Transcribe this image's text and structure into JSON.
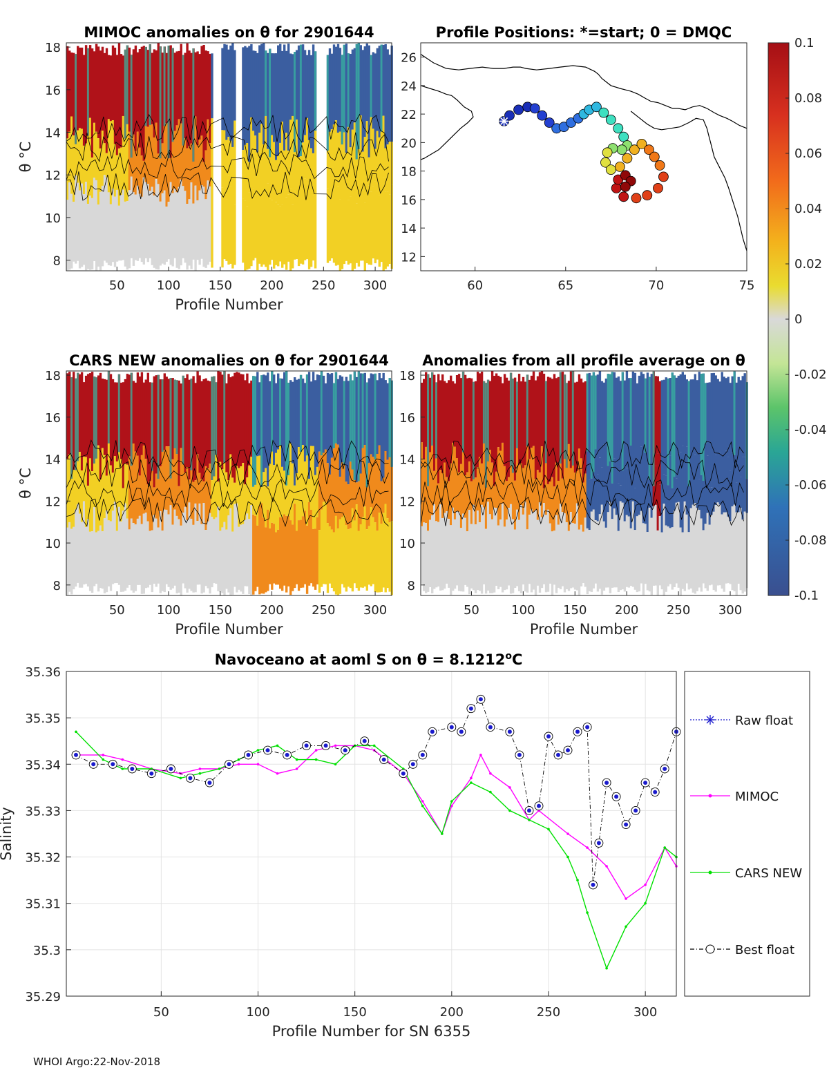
{
  "footer": "WHOI Argo:22-Nov-2018",
  "colors": {
    "warm": "#b01219",
    "orange": "#f08a1c",
    "yellow": "#f2d024",
    "neutral": "#d8d8d8",
    "teal": "#38b4a0",
    "blue": "#3b5ea0",
    "magenta": "#ff00ff",
    "green": "#00e000",
    "navy": "#1a1acc"
  },
  "chart_data": [
    {
      "id": "mimoc",
      "type": "heatmap",
      "title": "MIMOC anomalies on θ  for 2901644",
      "xlabel": "Profile Number",
      "ylabel": "θ °C",
      "xlim": [
        1,
        316
      ],
      "ylim": [
        7.5,
        18.2
      ],
      "xticks": [
        "50",
        "100",
        "150",
        "200",
        "250",
        "300"
      ],
      "yticks": [
        "8",
        "10",
        "12",
        "14",
        "16",
        "18"
      ],
      "gaps": [
        [
          143,
          150
        ],
        [
          165,
          170
        ],
        [
          242,
          253
        ]
      ],
      "anomaly_bands": [
        {
          "from": 1,
          "to": 60,
          "upper": "warm",
          "mid": "yellow",
          "deep": "neutral"
        },
        {
          "from": 60,
          "to": 140,
          "upper": "warm",
          "mid": "orange",
          "deep": "neutral"
        },
        {
          "from": 170,
          "to": 242,
          "upper": "blue",
          "mid": "yellow",
          "deep": "yellow"
        },
        {
          "from": 253,
          "to": 316,
          "upper": "blue",
          "mid": "yellow",
          "deep": "yellow"
        }
      ]
    },
    {
      "id": "positions",
      "type": "scatter",
      "title": "Profile Positions: *=start; 0 = DMQC",
      "xlim": [
        57,
        75
      ],
      "ylim": [
        11,
        27
      ],
      "xticks": [
        "60",
        "65",
        "70",
        "75"
      ],
      "yticks": [
        "12",
        "14",
        "16",
        "18",
        "20",
        "22",
        "24",
        "26"
      ],
      "track_lon": [
        61.6,
        61.9,
        62.4,
        62.9,
        63.3,
        63.7,
        64.1,
        64.5,
        64.9,
        65.3,
        65.7,
        66.0,
        66.3,
        66.7,
        67.1,
        67.5,
        67.9,
        68.2,
        68.4,
        68.1,
        67.6,
        67.3,
        67.2,
        67.5,
        68.0,
        68.4,
        68.8,
        69.2,
        69.6,
        69.9,
        70.2,
        70.4,
        70.1,
        69.5,
        68.9,
        68.2,
        67.8,
        67.9,
        68.3,
        68.6,
        68.3
      ],
      "track_lat": [
        21.5,
        21.9,
        22.3,
        22.5,
        22.4,
        21.9,
        21.4,
        21.0,
        21.1,
        21.4,
        21.7,
        22.0,
        22.3,
        22.5,
        22.1,
        21.6,
        21.0,
        20.4,
        19.8,
        19.5,
        19.6,
        19.3,
        18.6,
        18.1,
        18.3,
        18.9,
        19.5,
        19.9,
        19.5,
        19.0,
        18.4,
        17.6,
        16.8,
        16.3,
        16.1,
        16.2,
        16.8,
        17.4,
        17.7,
        17.3,
        16.9
      ],
      "coast": [
        {
          "lon": [
            57.0,
            57.7,
            58.4,
            59.1,
            59.7,
            60.4,
            61.0,
            61.6,
            62.1,
            62.5,
            62.8,
            63.4,
            64.1,
            64.7,
            65.4,
            66.1,
            66.6,
            66.8,
            67.0,
            67.5,
            68.0,
            68.3,
            68.6,
            69.0,
            69.4,
            69.7,
            70.1,
            70.5,
            70.9,
            71.2,
            71.6,
            72.0,
            72.4,
            72.8,
            73.2,
            73.5,
            73.9,
            74.2,
            74.6,
            75.0
          ],
          "lat": [
            26.2,
            25.6,
            25.2,
            25.1,
            25.2,
            25.3,
            25.2,
            25.2,
            25.3,
            25.3,
            25.2,
            25.1,
            25.2,
            25.3,
            25.4,
            25.3,
            25.0,
            24.8,
            24.5,
            24.0,
            23.8,
            23.7,
            23.6,
            23.4,
            23.1,
            22.9,
            22.8,
            22.6,
            22.4,
            22.4,
            22.3,
            22.5,
            22.6,
            22.4,
            22.1,
            21.9,
            21.7,
            21.5,
            21.2,
            21.0
          ]
        },
        {
          "lon": [
            57.0,
            57.5,
            58.0,
            58.4,
            58.7,
            59.0,
            59.4,
            59.8,
            59.9,
            59.6,
            59.2,
            58.8,
            58.4,
            58.0,
            57.6,
            57.2,
            57.0
          ],
          "lat": [
            24.0,
            23.8,
            23.6,
            23.4,
            23.3,
            23.0,
            22.5,
            22.2,
            21.8,
            21.4,
            21.0,
            20.5,
            20.0,
            19.5,
            19.2,
            18.9,
            18.8
          ]
        },
        {
          "lon": [
            68.6,
            69.0,
            69.5,
            69.9,
            70.3,
            70.8,
            71.3,
            71.8,
            72.2,
            72.6,
            72.8,
            72.9,
            73.0,
            73.1,
            73.2,
            73.4,
            73.6,
            73.8,
            74.0,
            74.2,
            74.5,
            74.8,
            75.0
          ],
          "lat": [
            22.2,
            21.8,
            21.3,
            21.0,
            20.9,
            21.0,
            21.1,
            21.4,
            21.7,
            21.6,
            21.0,
            20.5,
            20.0,
            19.5,
            19.0,
            18.5,
            18.0,
            17.5,
            16.8,
            16.0,
            14.8,
            13.2,
            12.4
          ]
        }
      ]
    },
    {
      "id": "cars",
      "type": "heatmap",
      "title": "CARS NEW anomalies on θ for 2901644",
      "xlabel": "Profile Number",
      "ylabel": "θ °C",
      "xlim": [
        1,
        316
      ],
      "ylim": [
        7.5,
        18.2
      ],
      "xticks": [
        "50",
        "100",
        "150",
        "200",
        "250",
        "300"
      ],
      "yticks": [
        "8",
        "10",
        "12",
        "14",
        "16",
        "18"
      ],
      "anomaly_bands": [
        {
          "from": 1,
          "to": 60,
          "upper": "warm",
          "mid": "yellow",
          "deep": "neutral"
        },
        {
          "from": 60,
          "to": 140,
          "upper": "warm",
          "mid": "orange",
          "deep": "neutral"
        },
        {
          "from": 140,
          "to": 180,
          "upper": "warm",
          "mid": "yellow",
          "deep": "neutral"
        },
        {
          "from": 180,
          "to": 245,
          "upper": "blue",
          "mid": "yellow",
          "deep": "orange"
        },
        {
          "from": 245,
          "to": 316,
          "upper": "blue",
          "mid": "orange",
          "deep": "yellow"
        }
      ]
    },
    {
      "id": "allavg",
      "type": "heatmap",
      "title": "Anomalies from all profile average on θ",
      "xlabel": "Profile Number",
      "xlim": [
        1,
        316
      ],
      "ylim": [
        7.5,
        18.2
      ],
      "xticks": [
        "50",
        "100",
        "150",
        "200",
        "250",
        "300"
      ],
      "yticks": [
        "8",
        "10",
        "12",
        "14",
        "16",
        "18"
      ],
      "anomaly_bands": [
        {
          "from": 1,
          "to": 160,
          "upper": "warm",
          "mid": "orange",
          "deep": "neutral"
        },
        {
          "from": 160,
          "to": 225,
          "upper": "blue",
          "mid": "blue",
          "deep": "neutral"
        },
        {
          "from": 225,
          "to": 232,
          "upper": "warm",
          "mid": "warm",
          "deep": "neutral"
        },
        {
          "from": 232,
          "to": 316,
          "upper": "blue",
          "mid": "blue",
          "deep": "neutral"
        }
      ]
    },
    {
      "id": "colorbar",
      "type": "colorbar",
      "range": [
        -0.1,
        0.1
      ],
      "tick_labels": [
        "0.1",
        "0.08",
        "0.06",
        "0.04",
        "0.02",
        "0",
        "-0.02",
        "-0.04",
        "-0.06",
        "-0.08",
        "-0.1"
      ]
    },
    {
      "id": "salinity",
      "type": "line",
      "title": "Navoceano at aoml S on θ = 8.1212",
      "title_sup": "o",
      "title_unit": "C",
      "xlabel": "Profile Number for SN 6355",
      "ylabel": "Salinity",
      "xlim": [
        1,
        316
      ],
      "ylim": [
        35.29,
        35.36
      ],
      "xticks": [
        50,
        100,
        150,
        200,
        250,
        300
      ],
      "yticks": [
        "35.36",
        "35.35",
        "35.34",
        "35.33",
        "35.32",
        "35.31",
        "35.3",
        "35.29"
      ],
      "legend": [
        "Raw float",
        "MIMOC",
        "CARS NEW",
        "Best float"
      ],
      "series": [
        {
          "name": "MIMOC",
          "color": "#ff00ff",
          "x": [
            6,
            20,
            30,
            45,
            60,
            70,
            80,
            90,
            100,
            110,
            120,
            130,
            140,
            150,
            160,
            175,
            185,
            195,
            200,
            210,
            215,
            220,
            230,
            240,
            245,
            260,
            270,
            280,
            290,
            300,
            310,
            316
          ],
          "y": [
            35.342,
            35.342,
            35.341,
            35.339,
            35.338,
            35.339,
            35.339,
            35.34,
            35.34,
            35.338,
            35.339,
            35.343,
            35.344,
            35.344,
            35.343,
            35.338,
            35.332,
            35.325,
            35.331,
            35.337,
            35.342,
            35.338,
            35.335,
            35.328,
            35.33,
            35.325,
            35.322,
            35.318,
            35.311,
            35.314,
            35.322,
            35.318
          ]
        },
        {
          "name": "CARS NEW",
          "color": "#00e000",
          "x": [
            6,
            20,
            30,
            45,
            60,
            70,
            80,
            90,
            100,
            110,
            120,
            130,
            140,
            150,
            160,
            175,
            185,
            195,
            200,
            210,
            220,
            230,
            240,
            250,
            260,
            265,
            270,
            280,
            290,
            300,
            310,
            316
          ],
          "y": [
            35.347,
            35.341,
            35.339,
            35.339,
            35.337,
            35.338,
            35.339,
            35.341,
            35.343,
            35.344,
            35.341,
            35.341,
            35.34,
            35.344,
            35.344,
            35.339,
            35.331,
            35.325,
            35.332,
            35.336,
            35.334,
            35.33,
            35.328,
            35.326,
            35.32,
            35.315,
            35.308,
            35.296,
            35.305,
            35.31,
            35.322,
            35.32
          ]
        },
        {
          "name": "Best float",
          "color": "#1a1acc",
          "x": [
            6,
            15,
            25,
            35,
            45,
            55,
            65,
            75,
            85,
            95,
            105,
            115,
            125,
            135,
            145,
            155,
            165,
            175,
            180,
            185,
            190,
            200,
            205,
            210,
            215,
            220,
            230,
            235,
            240,
            245,
            250,
            255,
            260,
            265,
            270,
            273,
            276,
            280,
            285,
            290,
            295,
            300,
            305,
            310,
            316
          ],
          "y": [
            35.342,
            35.34,
            35.34,
            35.339,
            35.338,
            35.339,
            35.337,
            35.336,
            35.34,
            35.342,
            35.343,
            35.342,
            35.344,
            35.344,
            35.343,
            35.345,
            35.341,
            35.338,
            35.34,
            35.342,
            35.347,
            35.348,
            35.347,
            35.352,
            35.354,
            35.348,
            35.347,
            35.342,
            35.33,
            35.331,
            35.346,
            35.342,
            35.343,
            35.347,
            35.348,
            35.314,
            35.323,
            35.336,
            35.333,
            35.327,
            35.33,
            35.336,
            35.334,
            35.339,
            35.347
          ]
        }
      ]
    }
  ]
}
